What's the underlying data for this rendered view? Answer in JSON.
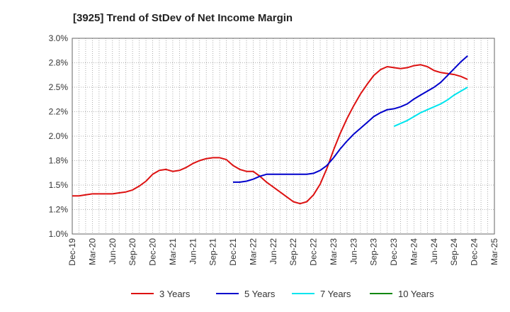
{
  "chart_data": {
    "type": "line",
    "title": "[3925]  Trend of StDev of Net Income Margin",
    "x_ticks": [
      "Dec-19",
      "Mar-20",
      "Jun-20",
      "Sep-20",
      "Dec-20",
      "Mar-21",
      "Jun-21",
      "Sep-21",
      "Dec-21",
      "Mar-22",
      "Jun-22",
      "Sep-22",
      "Dec-22",
      "Mar-23",
      "Jun-23",
      "Sep-23",
      "Dec-23",
      "Mar-24",
      "Jun-24",
      "Sep-24",
      "Dec-24",
      "Mar-25"
    ],
    "y_ticks": [
      "1.0%",
      "1.2%",
      "1.5%",
      "1.8%",
      "2.0%",
      "2.2%",
      "2.5%",
      "2.8%",
      "3.0%"
    ],
    "ylim": [
      1.0,
      3.0
    ],
    "grid": true,
    "legend_position": "bottom",
    "series": [
      {
        "name": "3 Years",
        "color": "#dd1111",
        "start_index": 0,
        "values": [
          1.39,
          1.39,
          1.4,
          1.41,
          1.41,
          1.41,
          1.41,
          1.42,
          1.43,
          1.45,
          1.49,
          1.54,
          1.61,
          1.65,
          1.66,
          1.64,
          1.65,
          1.68,
          1.72,
          1.75,
          1.77,
          1.78,
          1.78,
          1.76,
          1.7,
          1.66,
          1.64,
          1.64,
          1.59,
          1.53,
          1.48,
          1.43,
          1.38,
          1.33,
          1.31,
          1.33,
          1.4,
          1.51,
          1.67,
          1.86,
          2.03,
          2.18,
          2.31,
          2.43,
          2.53,
          2.62,
          2.68,
          2.71,
          2.7,
          2.69,
          2.7,
          2.72,
          2.73,
          2.71,
          2.67,
          2.65,
          2.64,
          2.63,
          2.61,
          2.58
        ]
      },
      {
        "name": "5 Years",
        "color": "#0000cc",
        "start_index": 24,
        "values": [
          1.53,
          1.53,
          1.54,
          1.56,
          1.59,
          1.61,
          1.61,
          1.61,
          1.61,
          1.61,
          1.61,
          1.61,
          1.62,
          1.65,
          1.7,
          1.78,
          1.87,
          1.95,
          2.02,
          2.08,
          2.14,
          2.2,
          2.24,
          2.27,
          2.28,
          2.3,
          2.33,
          2.38,
          2.42,
          2.46,
          2.5,
          2.55,
          2.62,
          2.69,
          2.76,
          2.82
        ]
      },
      {
        "name": "7 Years",
        "color": "#00e5ee",
        "start_index": 48,
        "values": [
          2.1,
          2.13,
          2.16,
          2.2,
          2.24,
          2.27,
          2.3,
          2.33,
          2.37,
          2.42,
          2.46,
          2.5
        ]
      },
      {
        "name": "10 Years",
        "color": "#118811",
        "start_index": 0,
        "values": []
      }
    ]
  }
}
